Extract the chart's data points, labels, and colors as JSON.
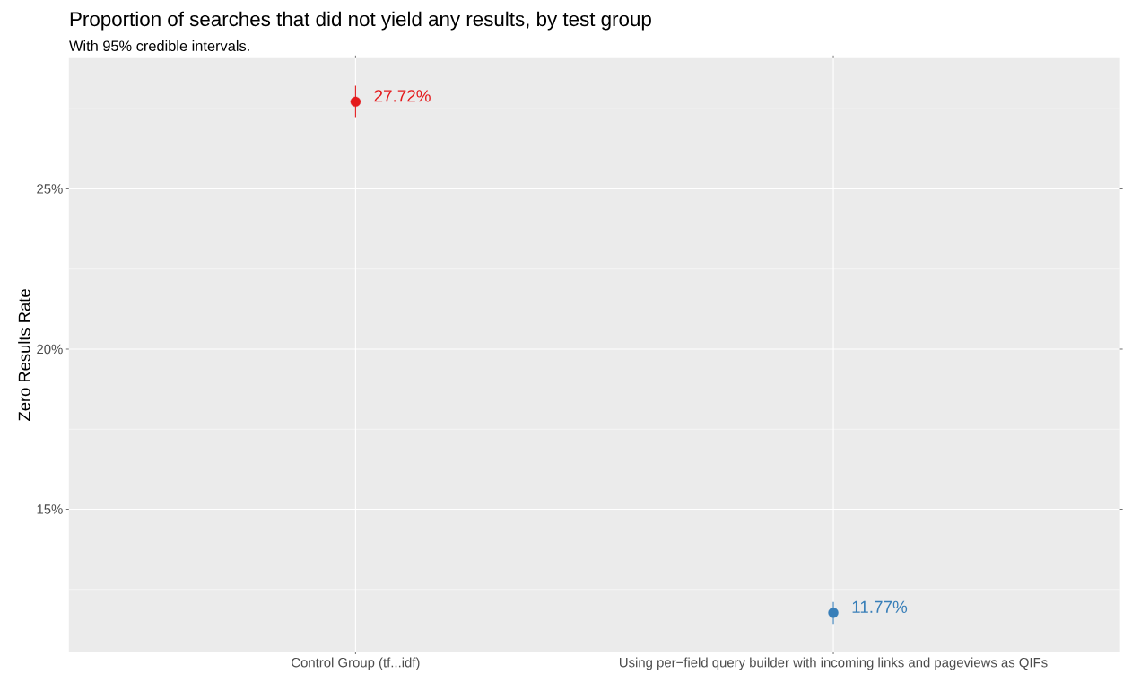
{
  "chart_data": {
    "type": "scatter",
    "title": "Proportion of searches that did not yield any results, by test group",
    "subtitle": "With 95% credible intervals.",
    "ylabel": "Zero Results Rate",
    "categories": [
      "Control Group (tf...idf)",
      "Using per−field query builder with incoming links and pageviews as QIFs"
    ],
    "values": [
      27.72,
      11.77
    ],
    "colors": [
      "#e41a1c",
      "#377eb8"
    ],
    "errors": [
      [
        27.24,
        28.22
      ],
      [
        11.42,
        12.11
      ]
    ],
    "value_labels": [
      "27.72%",
      "11.77%"
    ],
    "ylim": [
      10.56,
      29.08
    ],
    "yticks": [
      {
        "value": 15,
        "label": "15%"
      },
      {
        "value": 20,
        "label": "20%"
      },
      {
        "value": 25,
        "label": "25%"
      }
    ],
    "grid": true,
    "legend": false,
    "marker": "circle"
  }
}
